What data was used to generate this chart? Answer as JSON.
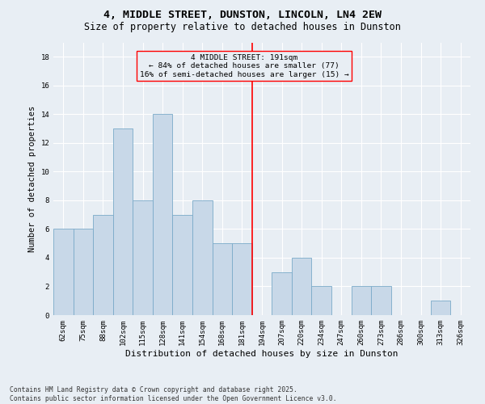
{
  "title": "4, MIDDLE STREET, DUNSTON, LINCOLN, LN4 2EW",
  "subtitle": "Size of property relative to detached houses in Dunston",
  "xlabel": "Distribution of detached houses by size in Dunston",
  "ylabel": "Number of detached properties",
  "bin_labels": [
    "62sqm",
    "75sqm",
    "88sqm",
    "102sqm",
    "115sqm",
    "128sqm",
    "141sqm",
    "154sqm",
    "168sqm",
    "181sqm",
    "194sqm",
    "207sqm",
    "220sqm",
    "234sqm",
    "247sqm",
    "260sqm",
    "273sqm",
    "286sqm",
    "300sqm",
    "313sqm",
    "326sqm"
  ],
  "bar_values": [
    6,
    6,
    7,
    13,
    8,
    14,
    7,
    8,
    5,
    5,
    0,
    3,
    4,
    2,
    0,
    2,
    2,
    0,
    0,
    1,
    0
  ],
  "bar_color": "#c8d8e8",
  "bar_edge_color": "#7aaac8",
  "background_color": "#e8eef4",
  "grid_color": "#ffffff",
  "annotation_title": "4 MIDDLE STREET: 191sqm",
  "annotation_line1": "← 84% of detached houses are smaller (77)",
  "annotation_line2": "16% of semi-detached houses are larger (15) →",
  "vline_pos": 9.5,
  "ylim": [
    0,
    19
  ],
  "yticks": [
    0,
    2,
    4,
    6,
    8,
    10,
    12,
    14,
    16,
    18
  ],
  "footer": "Contains HM Land Registry data © Crown copyright and database right 2025.\nContains public sector information licensed under the Open Government Licence v3.0.",
  "title_fontsize": 9.5,
  "subtitle_fontsize": 8.5,
  "xlabel_fontsize": 8,
  "ylabel_fontsize": 7.5,
  "tick_fontsize": 6.5,
  "annotation_fontsize": 6.8,
  "footer_fontsize": 5.8
}
